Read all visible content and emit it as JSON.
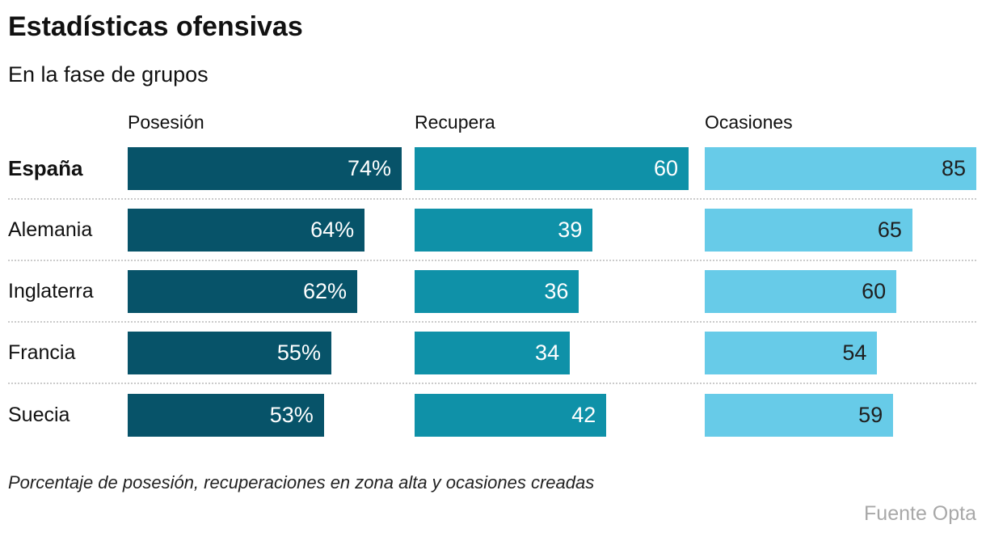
{
  "title": "Estadísticas ofensivas",
  "subtitle": "En la fase de grupos",
  "columns": {
    "posesion": "Posesión",
    "recupera": "Recupera",
    "ocasiones": "Ocasiones"
  },
  "rows": [
    {
      "team": "España",
      "posesion": "74%",
      "recupera": "60",
      "ocasiones": "85"
    },
    {
      "team": "Alemania",
      "posesion": "64%",
      "recupera": "39",
      "ocasiones": "65"
    },
    {
      "team": "Inglaterra",
      "posesion": "62%",
      "recupera": "36",
      "ocasiones": "60"
    },
    {
      "team": "Francia",
      "posesion": "55%",
      "recupera": "34",
      "ocasiones": "54"
    },
    {
      "team": "Suecia",
      "posesion": "53%",
      "recupera": "42",
      "ocasiones": "59"
    }
  ],
  "note": "Porcentaje de posesión, recuperaciones en zona alta y ocasiones creadas",
  "source": "Fuente Opta",
  "colors": {
    "posesion_bar": "#075369",
    "recupera_bar": "#0f91a8",
    "ocasiones_bar": "#67cbe8",
    "value_on_dark": "#ffffff",
    "value_on_light": "#1f1f1f",
    "separator": "#cbcbcb",
    "source_text": "#a8a8a8"
  },
  "chart_data": {
    "type": "bar",
    "orientation": "horizontal",
    "title": "Estadísticas ofensivas",
    "subtitle": "En la fase de grupos",
    "categories": [
      "España",
      "Alemania",
      "Inglaterra",
      "Francia",
      "Suecia"
    ],
    "series": [
      {
        "name": "Posesión",
        "unit": "%",
        "color": "#075369",
        "max": 74,
        "values": [
          74,
          64,
          62,
          55,
          53
        ]
      },
      {
        "name": "Recupera",
        "unit": "",
        "color": "#0f91a8",
        "max": 60,
        "values": [
          60,
          39,
          36,
          34,
          42
        ]
      },
      {
        "name": "Ocasiones",
        "unit": "",
        "color": "#67cbe8",
        "max": 85,
        "values": [
          85,
          65,
          60,
          54,
          59
        ]
      }
    ],
    "value_labels_shown": true,
    "grid": false,
    "legend": "column-headers-above-bars",
    "note": "Porcentaje de posesión, recuperaciones en zona alta y ocasiones creadas",
    "source": "Fuente Opta"
  }
}
